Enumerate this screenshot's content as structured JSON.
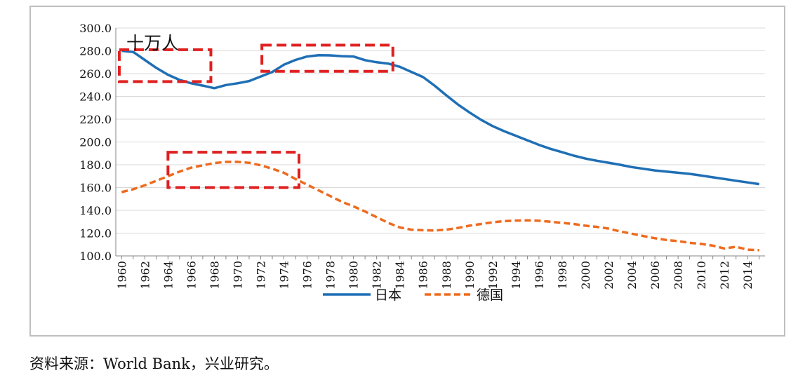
{
  "chart_data": {
    "type": "line",
    "unit_label": "十万人",
    "ylim": [
      100,
      300
    ],
    "y_ticks": [
      "300.0",
      "280.0",
      "260.0",
      "240.0",
      "220.0",
      "200.0",
      "180.0",
      "160.0",
      "140.0",
      "120.0",
      "100.0"
    ],
    "x_ticks": [
      "1960",
      "1962",
      "1964",
      "1966",
      "1968",
      "1970",
      "1972",
      "1974",
      "1976",
      "1978",
      "1980",
      "1982",
      "1984",
      "1986",
      "1988",
      "1990",
      "1992",
      "1994",
      "1996",
      "1998",
      "2000",
      "2002",
      "2004",
      "2006",
      "2008",
      "2010",
      "2012",
      "2014"
    ],
    "x": [
      1960,
      1961,
      1962,
      1963,
      1964,
      1965,
      1966,
      1967,
      1968,
      1969,
      1970,
      1971,
      1972,
      1973,
      1974,
      1975,
      1976,
      1977,
      1978,
      1979,
      1980,
      1981,
      1982,
      1983,
      1984,
      1985,
      1986,
      1987,
      1988,
      1989,
      1990,
      1991,
      1992,
      1993,
      1994,
      1995,
      1996,
      1997,
      1998,
      1999,
      2000,
      2001,
      2002,
      2003,
      2004,
      2005,
      2006,
      2007,
      2008,
      2009,
      2010,
      2011,
      2012,
      2013,
      2014,
      2015
    ],
    "grid": true,
    "legend_position": "bottom",
    "series": [
      {
        "name": "日本",
        "color": "#1f6fb5",
        "style": "solid",
        "values": [
          280.0,
          279.0,
          272.0,
          265.0,
          259.0,
          254.5,
          251.5,
          249.5,
          247.2,
          250.0,
          251.5,
          253.5,
          257.5,
          261.5,
          267.8,
          272.0,
          275.0,
          276.2,
          276.0,
          275.3,
          275.0,
          271.8,
          270.0,
          268.8,
          266.0,
          261.5,
          257.0,
          249.5,
          241.0,
          233.0,
          226.0,
          219.5,
          214.0,
          209.5,
          205.5,
          201.5,
          197.5,
          194.0,
          191.0,
          188.0,
          185.5,
          183.5,
          181.8,
          180.0,
          178.0,
          176.5,
          175.0,
          174.0,
          173.0,
          172.0,
          170.5,
          169.0,
          167.5,
          166.0,
          164.5,
          163.0
        ]
      },
      {
        "name": "德国",
        "color": "#ed6b1f",
        "style": "dashed",
        "values": [
          156.0,
          158.5,
          162.0,
          166.0,
          170.0,
          174.0,
          177.5,
          179.5,
          181.5,
          182.5,
          182.5,
          181.7,
          179.5,
          176.5,
          173.0,
          167.5,
          162.5,
          157.5,
          152.5,
          147.5,
          143.5,
          139.0,
          134.0,
          129.0,
          125.0,
          123.0,
          122.5,
          122.3,
          123.0,
          124.5,
          126.5,
          128.0,
          129.5,
          130.5,
          131.0,
          131.2,
          130.8,
          130.0,
          129.0,
          128.0,
          126.5,
          125.5,
          124.0,
          121.5,
          119.5,
          117.5,
          115.5,
          114.0,
          113.0,
          111.5,
          110.5,
          109.0,
          106.5,
          108.0,
          105.5,
          105.0
        ]
      }
    ],
    "annotations": [
      {
        "type": "dashed-box",
        "color": "#e02020",
        "x_start": 1959.8,
        "x_end": 1967.7,
        "y_top": 281.0,
        "y_bottom": 253.0
      },
      {
        "type": "dashed-box",
        "color": "#e02020",
        "x_start": 1972.1,
        "x_end": 1983.4,
        "y_top": 285.0,
        "y_bottom": 262.0
      },
      {
        "type": "dashed-box",
        "color": "#e02020",
        "x_start": 1964.0,
        "x_end": 1975.3,
        "y_top": 191.0,
        "y_bottom": 160.0
      }
    ]
  },
  "source_note": "资料来源：World Bank，兴业研究。"
}
